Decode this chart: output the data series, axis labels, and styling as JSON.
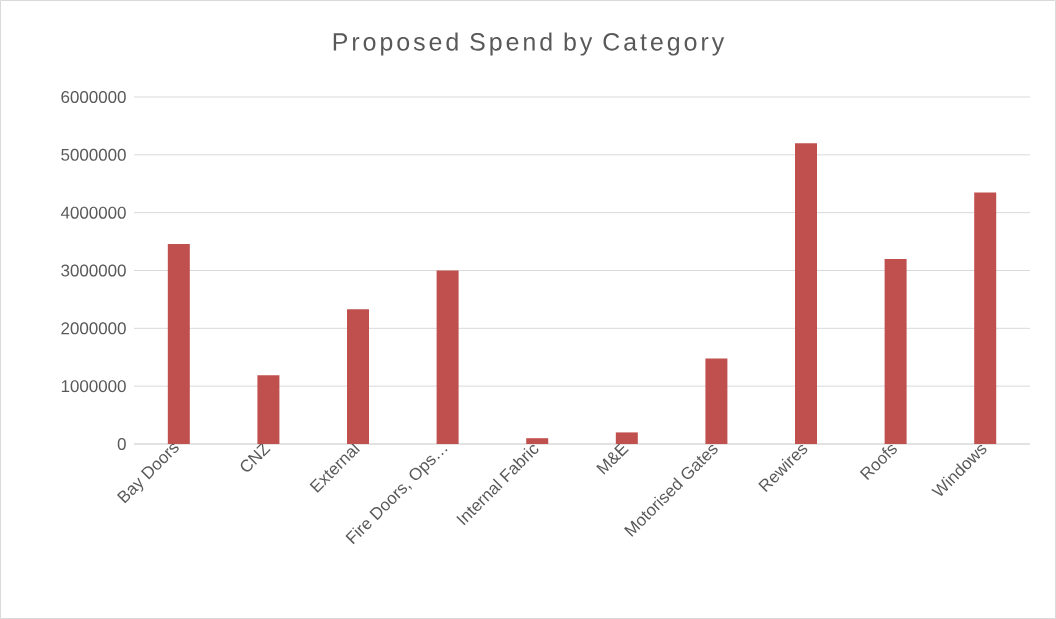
{
  "chart_data": {
    "type": "bar",
    "title": "Proposed Spend by Category",
    "categories": [
      "Bay Doors",
      "CNZ",
      "External",
      "Fire Doors, Ops…",
      "Internal Fabric",
      "M&E",
      "Motorised Gates",
      "Rewires",
      "Roofs",
      "Windows"
    ],
    "values": [
      3460000,
      1190000,
      2330000,
      3000000,
      100000,
      200000,
      1480000,
      5200000,
      3200000,
      4350000
    ],
    "color": "#c0504d",
    "ylim": [
      0,
      6000000
    ],
    "yticks": [
      0,
      1000000,
      2000000,
      3000000,
      4000000,
      5000000,
      6000000
    ],
    "grid": "y"
  }
}
